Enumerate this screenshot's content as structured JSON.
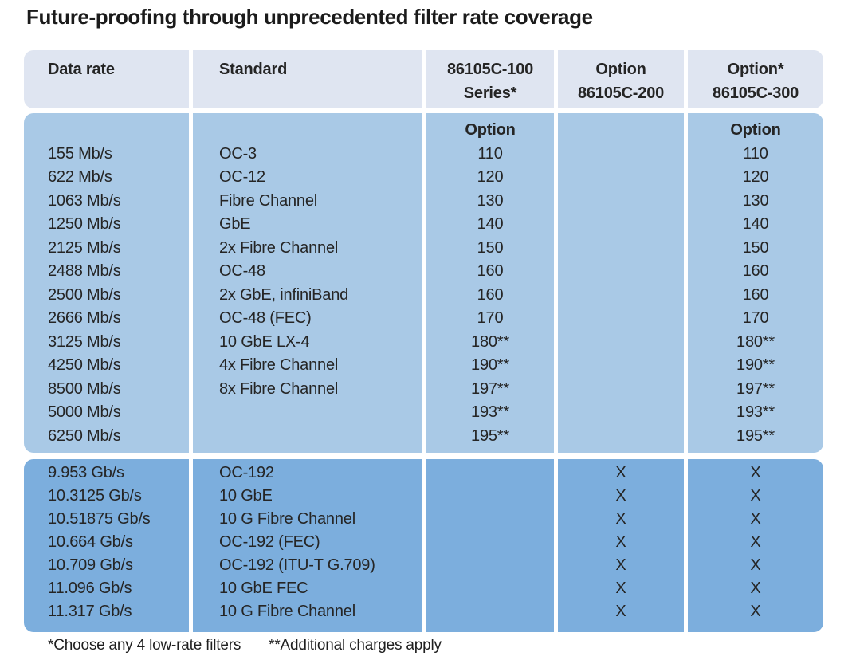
{
  "title": "Future-proofing through unprecedented filter rate coverage",
  "colors": {
    "header_band": "#dfe5f1",
    "low_rate_band": "#a9c9e6",
    "high_rate_band": "#7caedd",
    "text": "#252525"
  },
  "table": {
    "header": {
      "col1": {
        "line1": "Data rate",
        "line2": ""
      },
      "col2": {
        "line1": "Standard",
        "line2": ""
      },
      "col3": {
        "line1": "86105C-100",
        "line2": "Series*"
      },
      "col4": {
        "line1": "Option",
        "line2": "86105C-200"
      },
      "col5": {
        "line1": "Option*",
        "line2": "86105C-300"
      }
    },
    "low_rate_section": {
      "subheader_label": "Option",
      "rows": [
        {
          "rate": "155 Mb/s",
          "standard": "OC-3",
          "opt100": "110",
          "opt200": "",
          "opt300": "110"
        },
        {
          "rate": "622 Mb/s",
          "standard": "OC-12",
          "opt100": "120",
          "opt200": "",
          "opt300": "120"
        },
        {
          "rate": "1063 Mb/s",
          "standard": "Fibre Channel",
          "opt100": "130",
          "opt200": "",
          "opt300": "130"
        },
        {
          "rate": "1250 Mb/s",
          "standard": "GbE",
          "opt100": "140",
          "opt200": "",
          "opt300": "140"
        },
        {
          "rate": "2125 Mb/s",
          "standard": "2x Fibre Channel",
          "opt100": "150",
          "opt200": "",
          "opt300": "150"
        },
        {
          "rate": "2488 Mb/s",
          "standard": "OC-48",
          "opt100": "160",
          "opt200": "",
          "opt300": "160"
        },
        {
          "rate": "2500 Mb/s",
          "standard": "2x GbE, infiniBand",
          "opt100": "160",
          "opt200": "",
          "opt300": "160"
        },
        {
          "rate": "2666 Mb/s",
          "standard": "OC-48 (FEC)",
          "opt100": "170",
          "opt200": "",
          "opt300": "170"
        },
        {
          "rate": "3125 Mb/s",
          "standard": "10 GbE LX-4",
          "opt100": "180**",
          "opt200": "",
          "opt300": "180**"
        },
        {
          "rate": "4250 Mb/s",
          "standard": "4x Fibre Channel",
          "opt100": "190**",
          "opt200": "",
          "opt300": "190**"
        },
        {
          "rate": "8500 Mb/s",
          "standard": "8x Fibre Channel",
          "opt100": "197**",
          "opt200": "",
          "opt300": "197**"
        },
        {
          "rate": "5000 Mb/s",
          "standard": "",
          "opt100": "193**",
          "opt200": "",
          "opt300": "193**"
        },
        {
          "rate": "6250 Mb/s",
          "standard": "",
          "opt100": "195**",
          "opt200": "",
          "opt300": "195**"
        }
      ]
    },
    "high_rate_section": {
      "rows": [
        {
          "rate": "9.953 Gb/s",
          "standard": "OC-192",
          "opt100": "",
          "opt200": "X",
          "opt300": "X"
        },
        {
          "rate": "10.3125 Gb/s",
          "standard": "10 GbE",
          "opt100": "",
          "opt200": "X",
          "opt300": "X"
        },
        {
          "rate": "10.51875 Gb/s",
          "standard": "10 G Fibre Channel",
          "opt100": "",
          "opt200": "X",
          "opt300": "X"
        },
        {
          "rate": "10.664 Gb/s",
          "standard": "OC-192 (FEC)",
          "opt100": "",
          "opt200": "X",
          "opt300": "X"
        },
        {
          "rate": "10.709 Gb/s",
          "standard": "OC-192 (ITU-T G.709)",
          "opt100": "",
          "opt200": "X",
          "opt300": "X"
        },
        {
          "rate": "11.096 Gb/s",
          "standard": "10 GbE FEC",
          "opt100": "",
          "opt200": "X",
          "opt300": "X"
        },
        {
          "rate": "11.317 Gb/s",
          "standard": "10 G Fibre Channel",
          "opt100": "",
          "opt200": "X",
          "opt300": "X"
        }
      ]
    },
    "footnote_1": "*Choose any 4 low-rate filters",
    "footnote_2": "**Additional charges apply"
  }
}
